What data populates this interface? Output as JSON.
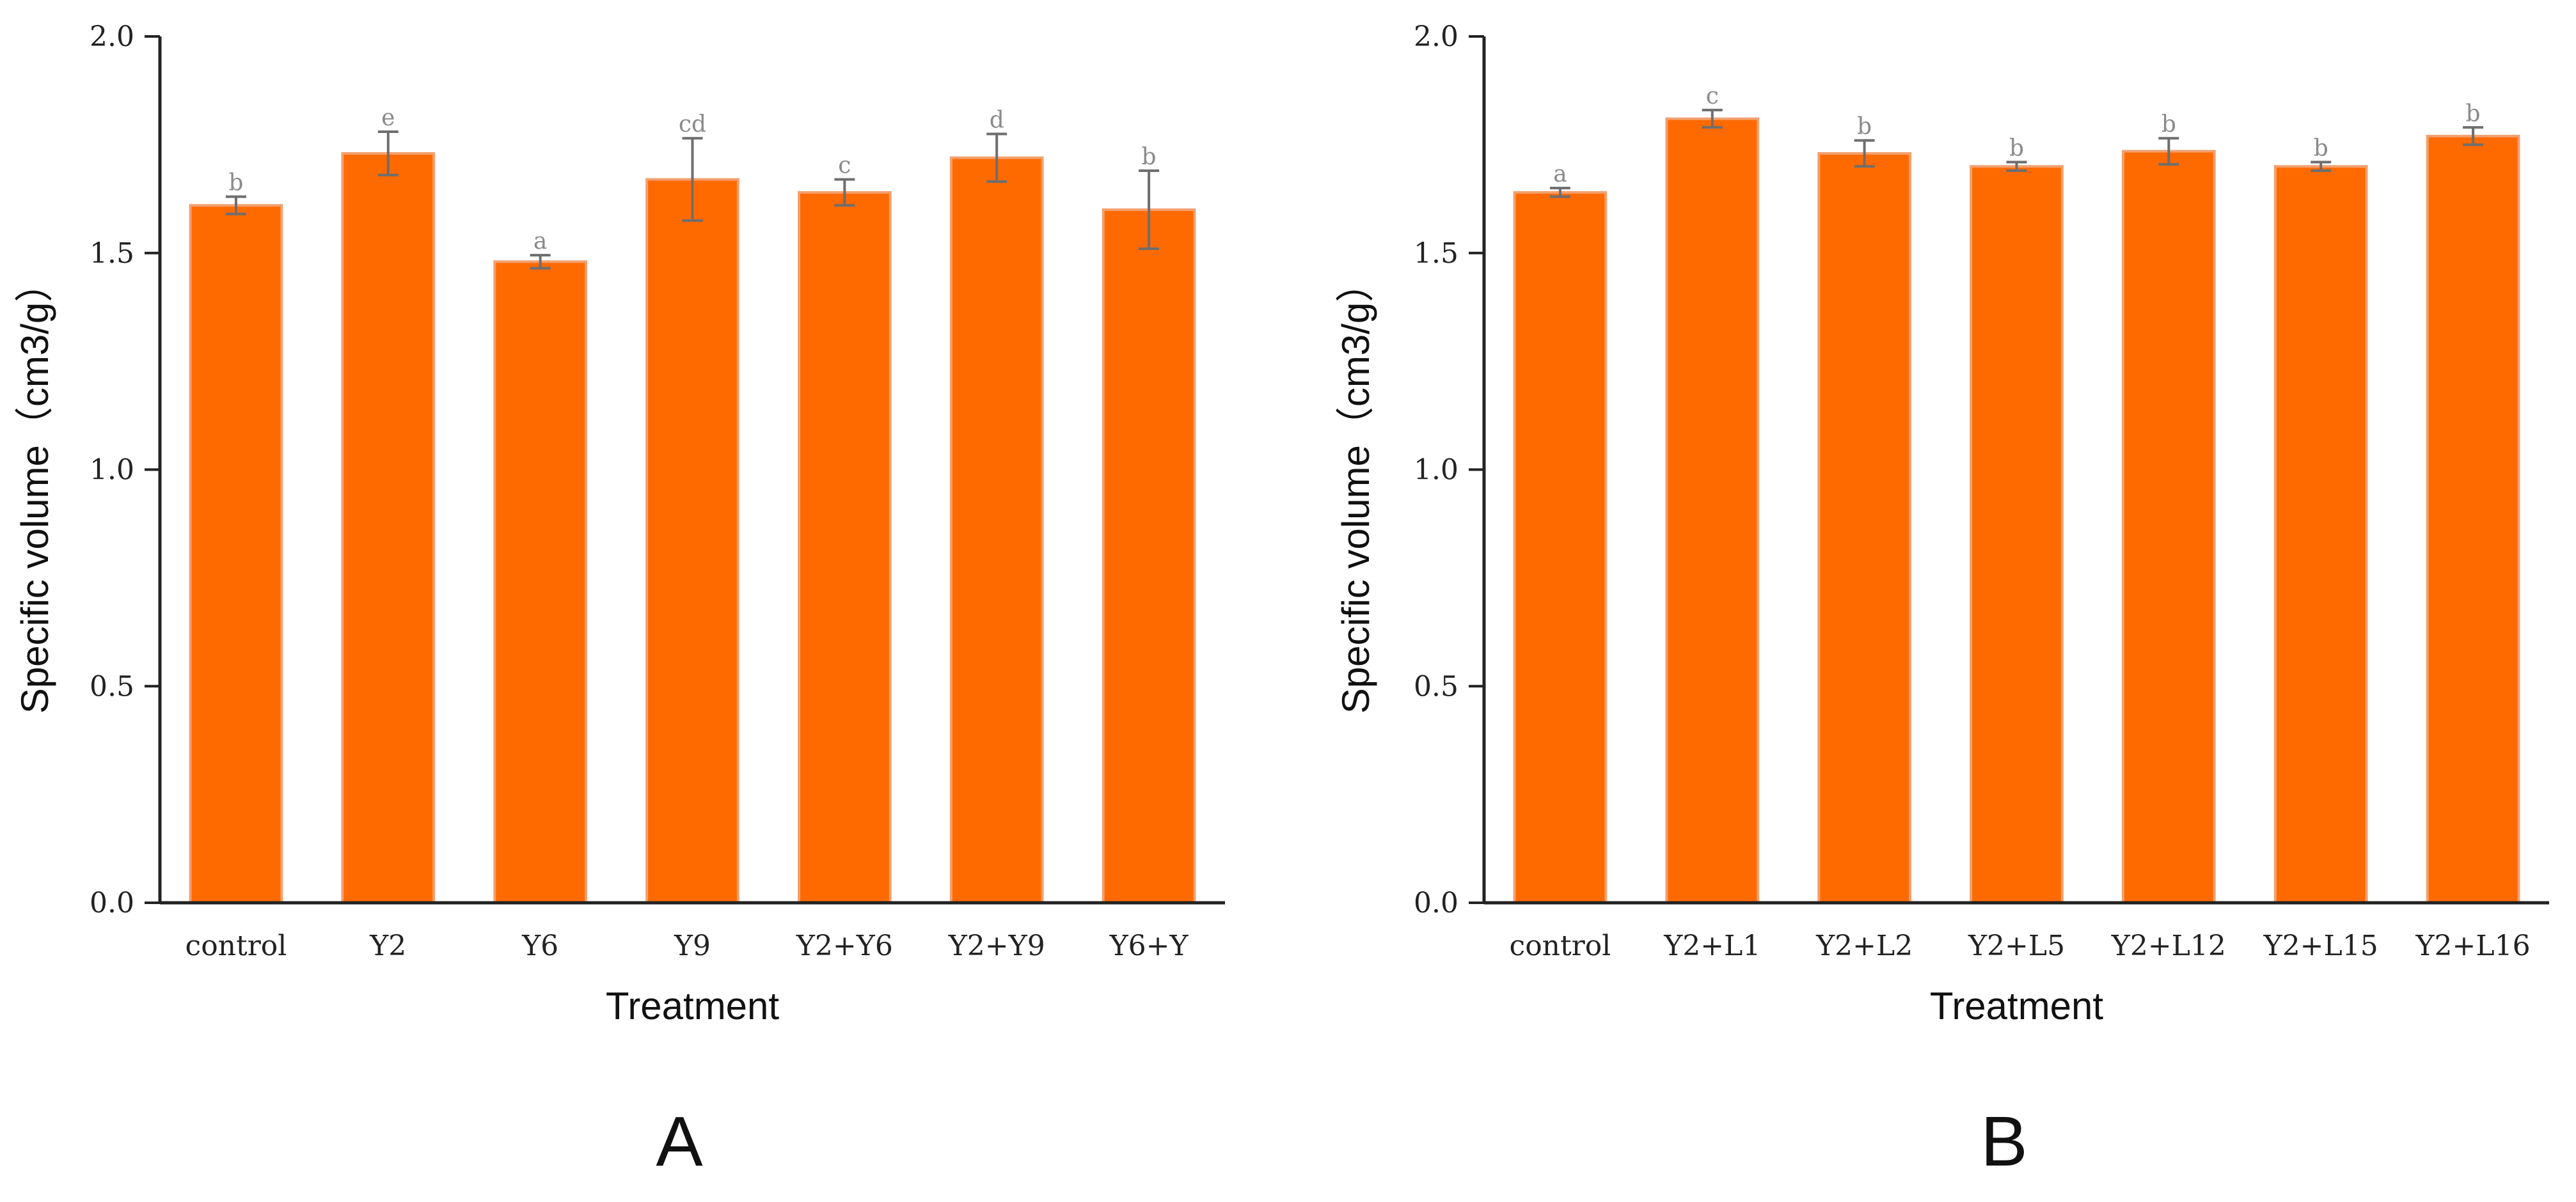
{
  "colors": {
    "bar": "#FF6A00",
    "bar_edge": "#F2A070",
    "axis": "#222222",
    "sig": "#8a8a8a"
  },
  "chart_data": [
    {
      "type": "bar",
      "panel_label": "A",
      "title": "",
      "xlabel": "Treatment",
      "ylabel": "Specific volume（cm3/g）",
      "ylim": [
        0,
        2.0
      ],
      "yticks": [
        0,
        0.5,
        1.0,
        1.5,
        2.0
      ],
      "ytick_labels": [
        "0.0",
        "0.5",
        "1.0",
        "1.5",
        "2.0"
      ],
      "categories": [
        "control",
        "Y2",
        "Y6",
        "Y9",
        "Y2+Y6",
        "Y2+Y9",
        "Y6+Y"
      ],
      "values": [
        1.61,
        1.73,
        1.48,
        1.67,
        1.64,
        1.72,
        1.6
      ],
      "errors": [
        0.02,
        0.05,
        0.015,
        0.095,
        0.03,
        0.055,
        0.09
      ],
      "significance": [
        "b",
        "e",
        "a",
        "cd",
        "c",
        "d",
        "b"
      ]
    },
    {
      "type": "bar",
      "panel_label": "B",
      "title": "",
      "xlabel": "Treatment",
      "ylabel": "Specific volume（cm3/g）",
      "ylim": [
        0,
        2.0
      ],
      "yticks": [
        0,
        0.5,
        1.0,
        1.5,
        2.0
      ],
      "ytick_labels": [
        "0.0",
        "0.5",
        "1.0",
        "1.5",
        "2.0"
      ],
      "categories": [
        "control",
        "Y2+L1",
        "Y2+L2",
        "Y2+L5",
        "Y2+L12",
        "Y2+L15",
        "Y2+L16"
      ],
      "values": [
        1.64,
        1.81,
        1.73,
        1.7,
        1.735,
        1.7,
        1.77
      ],
      "errors": [
        0.01,
        0.02,
        0.03,
        0.01,
        0.03,
        0.01,
        0.02
      ],
      "significance": [
        "a",
        "c",
        "b",
        "b",
        "b",
        "b",
        "b"
      ]
    }
  ]
}
